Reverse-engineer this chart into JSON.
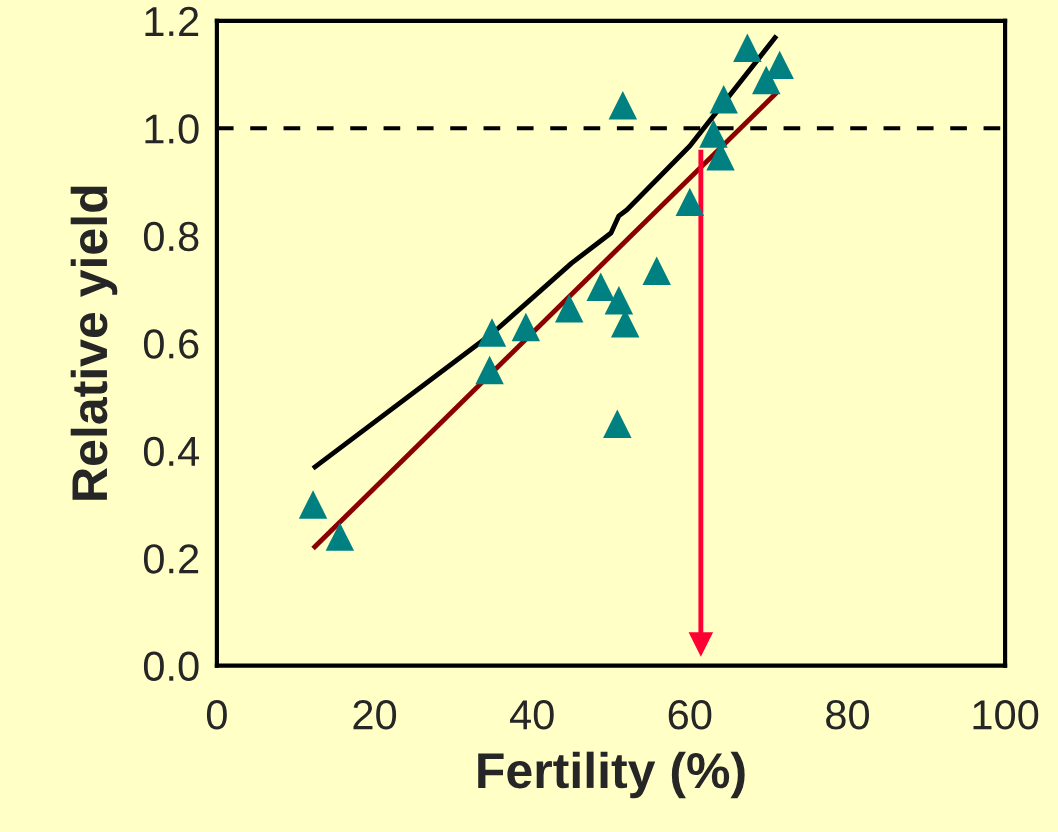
{
  "chart_data": {
    "type": "scatter",
    "xlabel": "Fertility (%)",
    "ylabel": "Relative yield",
    "xlim": [
      0,
      100
    ],
    "xticks": [
      0,
      20,
      40,
      60,
      80,
      100
    ],
    "ylim": [
      0,
      1.2
    ],
    "yticks": [
      {
        "value": 0,
        "label": "0.0"
      },
      {
        "value": 0.2,
        "label": "0.2"
      },
      {
        "value": 0.4,
        "label": "0.4"
      },
      {
        "value": 0.6,
        "label": "0.6"
      },
      {
        "value": 0.8,
        "label": "0.8"
      },
      {
        "value": 1.0,
        "label": "1.0"
      },
      {
        "value": 1.2,
        "label": "1.2"
      }
    ],
    "grid": false,
    "legend": false,
    "ref_lines": [
      {
        "axis": "y",
        "value": 1.0,
        "color": "#000000",
        "line_style": "dashed"
      }
    ],
    "series": [
      {
        "type": "line",
        "color": "#000000",
        "x": [
          12.2,
          35,
          40,
          45,
          50,
          51,
          52,
          60,
          71
        ],
        "values": [
          0.367,
          0.619,
          0.684,
          0.749,
          0.805,
          0.837,
          0.848,
          0.967,
          1.172
        ]
      },
      {
        "type": "line",
        "color": "#8b0000",
        "x": [
          12.2,
          71
        ],
        "values": [
          0.218,
          1.066
        ]
      },
      {
        "marker": "triangle",
        "color": "#008080",
        "x": [
          12.2,
          15.6,
          34.9,
          34.6,
          39.2,
          44.7,
          48.7,
          51.0,
          51.8,
          50.8,
          51.5,
          55.8,
          60.0,
          63.0,
          63.9,
          64.3,
          67.3,
          69.7,
          71.4
        ],
        "values": [
          0.3,
          0.24,
          0.62,
          0.55,
          0.63,
          0.665,
          0.705,
          0.68,
          0.637,
          0.45,
          1.043,
          0.735,
          0.863,
          0.99,
          0.948,
          1.054,
          1.15,
          1.09,
          1.118
        ]
      },
      {
        "type": "line",
        "marker": "triangle",
        "color": "#ff0033",
        "x": [
          61.4,
          61.4
        ],
        "values": [
          0.96,
          0.04
        ]
      }
    ]
  }
}
